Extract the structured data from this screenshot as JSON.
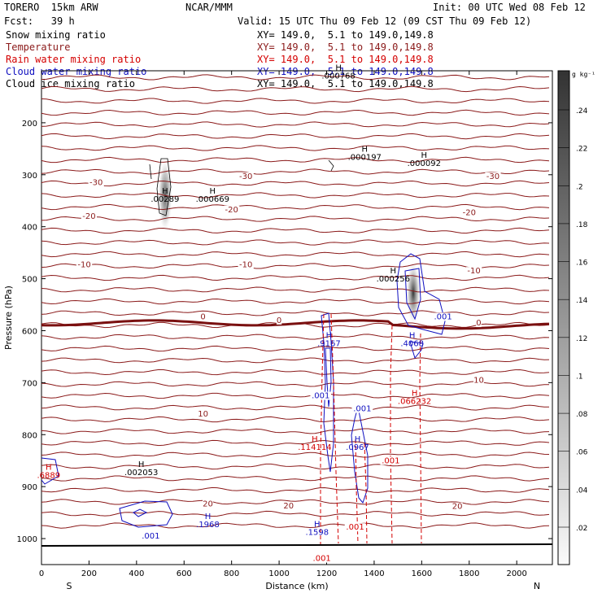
{
  "header": {
    "model": "TORERO  15km ARW",
    "org": "NCAR/MMM",
    "init": "Init: 00 UTC Wed 08 Feb 12",
    "fcst": "Fcst:   39 h",
    "valid": "Valid: 15 UTC Thu 09 Feb 12 (09 CST Thu 09 Feb 12)"
  },
  "legend": [
    {
      "name": "Snow mixing ratio",
      "color": "#000000",
      "xy": "XY= 149.0,  5.1 to 149.0,149.8"
    },
    {
      "name": "Temperature",
      "color": "#8b1a1a",
      "xy": "XY= 149.0,  5.1 to 149.0,149.8"
    },
    {
      "name": "Rain water mixing ratio",
      "color": "#d40000",
      "xy": "XY= 149.0,  5.1 to 149.0,149.8"
    },
    {
      "name": "Cloud water mixing ratio",
      "color": "#1010c0",
      "xy": "XY= 149.0,  5.1 to 149.0,149.8"
    },
    {
      "name": "Cloud ice mixing ratio",
      "color": "#000000",
      "xy": "XY= 149.0,  5.1 to 149.0,149.8"
    }
  ],
  "chart_data": {
    "type": "cross-section",
    "xlabel": "Distance (km)",
    "ylabel": "Pressure (hPa)",
    "xlim": [
      0,
      2150
    ],
    "ylim": [
      1050,
      100
    ],
    "x_ticks": [
      0,
      200,
      400,
      600,
      800,
      1000,
      1200,
      1400,
      1600,
      1800,
      2000
    ],
    "y_ticks": [
      200,
      300,
      400,
      500,
      600,
      700,
      800,
      900,
      1000
    ],
    "x_end_labels": {
      "left": "S",
      "right": "N"
    },
    "colorbar": {
      "unit": "g kg⁻¹",
      "labels": [
        ".24",
        ".22",
        ".2",
        ".18",
        ".16",
        ".14",
        ".12",
        ".1",
        ".08",
        ".06",
        ".04",
        ".02"
      ]
    },
    "temperature_labels": [
      {
        "text": "-30",
        "x": 230,
        "p": 320
      },
      {
        "text": "-30",
        "x": 860,
        "p": 308
      },
      {
        "text": "-30",
        "x": 1900,
        "p": 308
      },
      {
        "text": "-20",
        "x": 200,
        "p": 385
      },
      {
        "text": "-20",
        "x": 800,
        "p": 372
      },
      {
        "text": "-20",
        "x": 1800,
        "p": 378
      },
      {
        "text": "-10",
        "x": 180,
        "p": 478
      },
      {
        "text": "-10",
        "x": 860,
        "p": 478
      },
      {
        "text": "-10",
        "x": 1820,
        "p": 490
      },
      {
        "text": "0",
        "x": 680,
        "p": 578
      },
      {
        "text": "0",
        "x": 1000,
        "p": 585
      },
      {
        "text": "0",
        "x": 1840,
        "p": 590
      },
      {
        "text": "10",
        "x": 680,
        "p": 765
      },
      {
        "text": "10",
        "x": 1840,
        "p": 700
      },
      {
        "text": "20",
        "x": 700,
        "p": 938
      },
      {
        "text": "20",
        "x": 1040,
        "p": 942
      },
      {
        "text": "20",
        "x": 1750,
        "p": 943
      }
    ],
    "snow_maxima": [
      {
        "text": ".00289",
        "x": 520,
        "p": 352
      },
      {
        "text": ".000669",
        "x": 720,
        "p": 352
      },
      {
        "text": ".000197",
        "x": 1360,
        "p": 271
      },
      {
        "text": ".000092",
        "x": 1610,
        "p": 283
      },
      {
        "text": ".000256",
        "x": 1480,
        "p": 505
      },
      {
        "text": ".000768",
        "x": 1250,
        "p": 115
      },
      {
        "text": ".002053",
        "x": 420,
        "p": 878
      }
    ],
    "cloud_water_maxima": [
      {
        "text": ".9167",
        "x": 1210,
        "p": 630
      },
      {
        "text": ".001",
        "x": 1175,
        "p": 730
      },
      {
        "text": ".001",
        "x": 1350,
        "p": 755
      },
      {
        "text": ".0967",
        "x": 1330,
        "p": 829
      },
      {
        "text": ".4068",
        "x": 1560,
        "p": 630
      },
      {
        "text": ".001",
        "x": 1690,
        "p": 578
      },
      {
        "text": ".1968",
        "x": 700,
        "p": 978
      },
      {
        "text": ".1598",
        "x": 1160,
        "p": 993
      },
      {
        "text": ".001",
        "x": 460,
        "p": 1000
      }
    ],
    "rain_maxima": [
      {
        "text": ".114114",
        "x": 1150,
        "p": 829
      },
      {
        "text": ".066232",
        "x": 1570,
        "p": 741
      },
      {
        "text": ".001",
        "x": 1470,
        "p": 855
      },
      {
        "text": ".001",
        "x": 1320,
        "p": 983
      },
      {
        "text": ".001",
        "x": 1180,
        "p": 1043
      },
      {
        "text": ".6889",
        "x": 30,
        "p": 883
      }
    ]
  }
}
